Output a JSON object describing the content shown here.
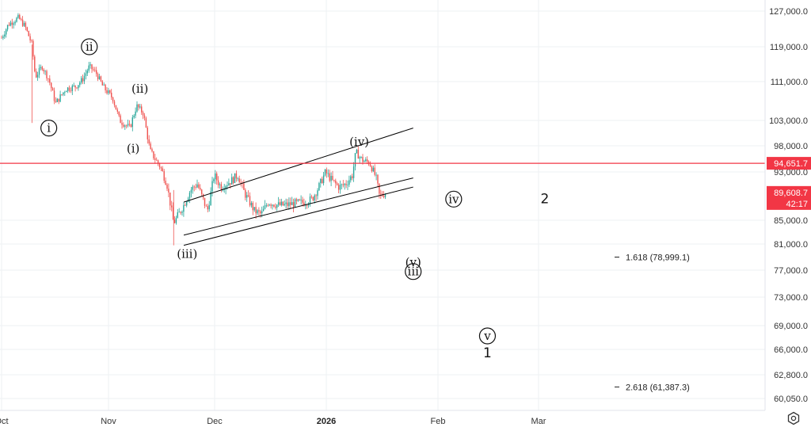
{
  "chart_data": {
    "type": "candlestick",
    "y_axis": {
      "side": "right",
      "ticks": [
        127000,
        119000,
        111000,
        103000,
        98000,
        93000,
        85000,
        81000,
        77000,
        73000,
        69000,
        66000,
        62800,
        60050
      ],
      "tick_labels": [
        "127,000.0",
        "119,000.0",
        "111,000.0",
        "103,000.0",
        "98,000.0",
        "93,000.0",
        "85,000.0",
        "81,000.0",
        "77,000.0",
        "73,000.0",
        "69,000.0",
        "66,000.0",
        "62,800.0",
        "60,050.0"
      ]
    },
    "x_axis": {
      "ticks": [
        {
          "label": "Oct",
          "bold": false
        },
        {
          "label": "Nov",
          "bold": false
        },
        {
          "label": "Dec",
          "bold": false
        },
        {
          "label": "2026",
          "bold": true
        },
        {
          "label": "Feb",
          "bold": false
        },
        {
          "label": "Mar",
          "bold": false
        }
      ]
    },
    "price_path": [
      [
        "2025-10-01",
        121000
      ],
      [
        "2025-10-03",
        124000
      ],
      [
        "2025-10-06",
        125500
      ],
      [
        "2025-10-08",
        123500
      ],
      [
        "2025-10-10",
        119500
      ],
      [
        "2025-10-11",
        112000
      ],
      [
        "2025-10-13",
        114500
      ],
      [
        "2025-10-15",
        111500
      ],
      [
        "2025-10-17",
        106500
      ],
      [
        "2025-10-20",
        109500
      ],
      [
        "2025-10-23",
        110000
      ],
      [
        "2025-10-25",
        111500
      ],
      [
        "2025-10-27",
        114500
      ],
      [
        "2025-10-29",
        113000
      ],
      [
        "2025-10-31",
        110000
      ],
      [
        "2025-11-03",
        107500
      ],
      [
        "2025-11-05",
        103000
      ],
      [
        "2025-11-08",
        101500
      ],
      [
        "2025-11-10",
        106000
      ],
      [
        "2025-11-12",
        104500
      ],
      [
        "2025-11-14",
        97000
      ],
      [
        "2025-11-17",
        94000
      ],
      [
        "2025-11-19",
        91000
      ],
      [
        "2025-11-21",
        84500
      ],
      [
        "2025-11-24",
        87500
      ],
      [
        "2025-11-26",
        90000
      ],
      [
        "2025-11-28",
        91000
      ],
      [
        "2025-12-01",
        86500
      ],
      [
        "2025-12-03",
        92500
      ],
      [
        "2025-12-05",
        90500
      ],
      [
        "2025-12-08",
        91500
      ],
      [
        "2025-12-10",
        92500
      ],
      [
        "2025-12-12",
        89500
      ],
      [
        "2025-12-15",
        86500
      ],
      [
        "2025-12-17",
        86000
      ],
      [
        "2025-12-19",
        88000
      ],
      [
        "2025-12-22",
        87500
      ],
      [
        "2025-12-24",
        87500
      ],
      [
        "2025-12-27",
        87800
      ],
      [
        "2025-12-30",
        88000
      ],
      [
        "2026-01-01",
        88500
      ],
      [
        "2026-01-03",
        90500
      ],
      [
        "2026-01-05",
        93000
      ],
      [
        "2026-01-07",
        91500
      ],
      [
        "2026-01-09",
        90500
      ],
      [
        "2026-01-11",
        91000
      ],
      [
        "2026-01-13",
        92500
      ],
      [
        "2026-01-14",
        96800
      ],
      [
        "2026-01-16",
        95200
      ],
      [
        "2026-01-18",
        94800
      ],
      [
        "2026-01-20",
        92000
      ],
      [
        "2026-01-21",
        89000
      ],
      [
        "2026-01-23",
        89600
      ]
    ],
    "horizontal_line": {
      "value": 94651.7,
      "label": "94,651.7",
      "color": "#f23645"
    },
    "last_price": {
      "value": 89608.7,
      "label": "89,608.7",
      "countdown": "42:17",
      "color": "#f23645"
    },
    "channel_lines": [
      {
        "from": [
          "2025-11-24",
          88000
        ],
        "to": [
          "2026-01-31",
          101500
        ]
      },
      {
        "from": [
          "2025-11-24",
          82500
        ],
        "to": [
          "2026-01-31",
          92000
        ]
      },
      {
        "from": [
          "2025-11-24",
          80800
        ],
        "to": [
          "2026-01-31",
          90500
        ]
      }
    ],
    "wave_labels": [
      {
        "text": "ii",
        "circled": true,
        "at": [
          "2025-10-27",
          119000
        ]
      },
      {
        "text": "i",
        "circled": true,
        "at": [
          "2025-10-15",
          101500
        ]
      },
      {
        "text": "(ii)",
        "circled": false,
        "at": [
          "2025-11-11",
          109500
        ]
      },
      {
        "text": "(i)",
        "circled": false,
        "at": [
          "2025-11-09",
          97500
        ]
      },
      {
        "text": "(iii)",
        "circled": false,
        "at": [
          "2025-11-25",
          79500
        ]
      },
      {
        "text": "(iv)",
        "circled": false,
        "at": [
          "2026-01-15",
          98800
        ]
      },
      {
        "text": "(v)",
        "circled": false,
        "at": [
          "2026-01-31",
          78200
        ]
      },
      {
        "text": "iii",
        "circled": true,
        "at": [
          "2026-01-31",
          76800
        ]
      },
      {
        "text": "iv",
        "circled": true,
        "at": [
          "2026-02-12",
          88500
        ]
      },
      {
        "text": "v",
        "circled": true,
        "at": [
          "2026-02-22",
          67700
        ]
      },
      {
        "text": "1",
        "circled": false,
        "big": true,
        "at": [
          "2026-02-22",
          65500
        ]
      },
      {
        "text": "2",
        "circled": false,
        "big": true,
        "at": [
          "2026-03-11",
          88500
        ]
      }
    ],
    "fib_levels": [
      {
        "label": "1.618 (78,999.1)",
        "value": 78999.1
      },
      {
        "label": "2.618 (61,387.3)",
        "value": 61387.3
      }
    ],
    "colors": {
      "up": "#26a69a",
      "down": "#ef5350",
      "grid": "#eef0f3",
      "channel": "#000000"
    }
  },
  "ui": {
    "settings_icon": "gear-icon"
  }
}
